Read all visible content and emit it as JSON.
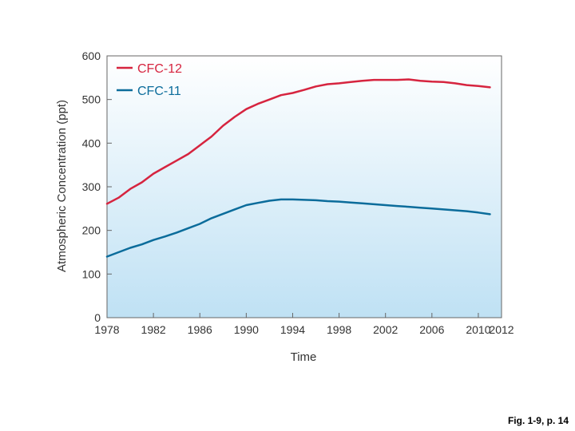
{
  "chart_data": {
    "type": "line",
    "title": "",
    "xlabel": "Time",
    "ylabel": "Atmospheric Concentration (ppt)",
    "xlim": [
      1978,
      2012
    ],
    "ylim": [
      0,
      600
    ],
    "x_ticks": [
      1978,
      1982,
      1986,
      1990,
      1994,
      1998,
      2002,
      2006,
      2010,
      2012
    ],
    "y_ticks": [
      0,
      100,
      200,
      300,
      400,
      500,
      600
    ],
    "legend_position": "top-left",
    "colors": {
      "CFC-12": "#d6243f",
      "CFC-11": "#0b6c9b"
    },
    "series": [
      {
        "name": "CFC-12",
        "x": [
          1978,
          1979,
          1980,
          1981,
          1982,
          1983,
          1984,
          1985,
          1986,
          1987,
          1988,
          1989,
          1990,
          1991,
          1992,
          1993,
          1994,
          1995,
          1996,
          1997,
          1998,
          1999,
          2000,
          2001,
          2002,
          2003,
          2004,
          2005,
          2006,
          2007,
          2008,
          2009,
          2010,
          2011
        ],
        "values": [
          261,
          275,
          295,
          310,
          330,
          345,
          360,
          375,
          395,
          415,
          440,
          460,
          478,
          490,
          500,
          510,
          515,
          522,
          530,
          535,
          537,
          540,
          543,
          545,
          545,
          545,
          546,
          543,
          541,
          540,
          537,
          533,
          531,
          528
        ]
      },
      {
        "name": "CFC-11",
        "x": [
          1978,
          1979,
          1980,
          1981,
          1982,
          1983,
          1984,
          1985,
          1986,
          1987,
          1988,
          1989,
          1990,
          1991,
          1992,
          1993,
          1994,
          1995,
          1996,
          1997,
          1998,
          1999,
          2000,
          2001,
          2002,
          2003,
          2004,
          2005,
          2006,
          2007,
          2008,
          2009,
          2010,
          2011
        ],
        "values": [
          140,
          150,
          160,
          168,
          178,
          186,
          195,
          205,
          215,
          228,
          238,
          248,
          258,
          263,
          268,
          271,
          271,
          270,
          269,
          267,
          266,
          264,
          262,
          260,
          258,
          256,
          254,
          252,
          250,
          248,
          246,
          244,
          241,
          237
        ]
      }
    ]
  },
  "caption": "Fig. 1-9, p. 14"
}
